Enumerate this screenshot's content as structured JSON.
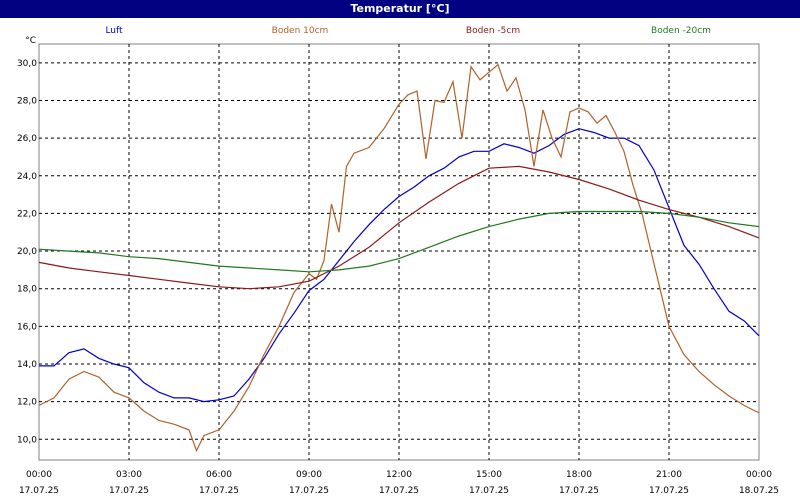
{
  "window": {
    "title": "Temperatur [°C]"
  },
  "colors": {
    "titlebar": "#000080",
    "grid": "#000000"
  },
  "chart_data": {
    "type": "line",
    "title": "Temperatur [°C]",
    "ylabel": "°C",
    "ylim": [
      8.9,
      31.0
    ],
    "xlim": [
      0,
      24
    ],
    "grid": true,
    "legend_placement": "top",
    "ytick_labels": [
      "10,0",
      "12,0",
      "14,0",
      "16,0",
      "18,0",
      "20,0",
      "22,0",
      "24,0",
      "26,0",
      "28,0",
      "30,0"
    ],
    "xtick_labels": [
      {
        "time": "00:00",
        "date": "17.07.25"
      },
      {
        "time": "03:00",
        "date": "17.07.25"
      },
      {
        "time": "06:00",
        "date": "17.07.25"
      },
      {
        "time": "09:00",
        "date": "17.07.25"
      },
      {
        "time": "12:00",
        "date": "17.07.25"
      },
      {
        "time": "15:00",
        "date": "17.07.25"
      },
      {
        "time": "18:00",
        "date": "17.07.25"
      },
      {
        "time": "21:00",
        "date": "17.07.25"
      },
      {
        "time": "00:00",
        "date": "18.07.25"
      }
    ],
    "series": [
      {
        "name": "Luft",
        "color": "#0000cc",
        "x": [
          0,
          0.5,
          1,
          1.5,
          2,
          2.5,
          3,
          3.5,
          4,
          4.5,
          5,
          5.5,
          6,
          6.5,
          7,
          7.5,
          8,
          8.5,
          9,
          9.5,
          10,
          10.5,
          11,
          11.5,
          12,
          12.5,
          13,
          13.5,
          14,
          14.5,
          15,
          15.5,
          16,
          16.5,
          17,
          17.5,
          18,
          18.5,
          19,
          19.5,
          20,
          20.5,
          21,
          21.5,
          22,
          22.5,
          23,
          23.5,
          24
        ],
        "y": [
          13.9,
          13.9,
          14.6,
          14.8,
          14.3,
          14.0,
          13.8,
          13.0,
          12.5,
          12.2,
          12.2,
          12.0,
          12.1,
          12.3,
          13.2,
          14.3,
          15.6,
          16.7,
          17.9,
          18.5,
          19.5,
          20.5,
          21.4,
          22.2,
          22.9,
          23.4,
          24.0,
          24.4,
          25.0,
          25.3,
          25.3,
          25.7,
          25.5,
          25.2,
          25.6,
          26.2,
          26.5,
          26.3,
          26.0,
          26.0,
          25.6,
          24.3,
          22.3,
          20.3,
          19.3,
          18.0,
          16.8,
          16.3,
          15.5
        ]
      },
      {
        "name": "Boden 10cm",
        "color": "#b0622a",
        "x": [
          0,
          0.5,
          1,
          1.5,
          2,
          2.5,
          3,
          3.5,
          4,
          4.5,
          5,
          5.25,
          5.5,
          6,
          6.5,
          7,
          7.5,
          8,
          8.5,
          9,
          9.25,
          9.5,
          9.75,
          10,
          10.25,
          10.5,
          11,
          11.5,
          12,
          12.3,
          12.6,
          12.9,
          13.2,
          13.5,
          13.8,
          14.1,
          14.4,
          14.7,
          15,
          15.3,
          15.6,
          15.9,
          16.2,
          16.5,
          16.8,
          17.1,
          17.4,
          17.7,
          18,
          18.3,
          18.6,
          18.9,
          19.2,
          19.5,
          19.8,
          20.1,
          20.4,
          20.7,
          21,
          21.5,
          22,
          22.5,
          23,
          23.5,
          24
        ],
        "y": [
          11.8,
          12.2,
          13.2,
          13.6,
          13.3,
          12.5,
          12.2,
          11.5,
          11.0,
          10.8,
          10.5,
          9.4,
          10.2,
          10.5,
          11.5,
          12.8,
          14.5,
          16.0,
          17.8,
          18.8,
          18.5,
          19.5,
          22.5,
          21.0,
          24.5,
          25.2,
          25.5,
          26.5,
          27.8,
          28.3,
          28.5,
          24.9,
          28.0,
          27.9,
          29.0,
          26.0,
          29.8,
          29.1,
          29.5,
          29.9,
          28.5,
          29.2,
          27.5,
          24.5,
          27.5,
          26.0,
          25.0,
          27.4,
          27.6,
          27.4,
          26.8,
          27.2,
          26.3,
          25.3,
          23.5,
          22.0,
          20.0,
          18.0,
          16.0,
          14.5,
          13.6,
          12.9,
          12.3,
          11.8,
          11.4
        ]
      },
      {
        "name": "Boden -5cm",
        "color": "#8b1a1a",
        "x": [
          0,
          1,
          2,
          3,
          4,
          5,
          6,
          7,
          8,
          9,
          10,
          11,
          12,
          13,
          14,
          15,
          16,
          17,
          18,
          19,
          20,
          21,
          22,
          23,
          24
        ],
        "y": [
          19.4,
          19.1,
          18.9,
          18.7,
          18.5,
          18.3,
          18.1,
          18.0,
          18.1,
          18.4,
          19.2,
          20.2,
          21.5,
          22.6,
          23.6,
          24.4,
          24.5,
          24.2,
          23.8,
          23.3,
          22.7,
          22.2,
          21.8,
          21.3,
          20.7
        ]
      },
      {
        "name": "Boden -20cm",
        "color": "#1f7a1f",
        "x": [
          0,
          1,
          2,
          3,
          4,
          5,
          6,
          7,
          8,
          9,
          10,
          11,
          12,
          13,
          14,
          15,
          16,
          17,
          18,
          19,
          20,
          21,
          22,
          23,
          24
        ],
        "y": [
          20.1,
          20.0,
          19.9,
          19.7,
          19.6,
          19.4,
          19.2,
          19.1,
          19.0,
          18.9,
          19.0,
          19.2,
          19.6,
          20.2,
          20.8,
          21.3,
          21.7,
          22.0,
          22.1,
          22.1,
          22.1,
          22.0,
          21.8,
          21.5,
          21.3
        ]
      }
    ]
  }
}
